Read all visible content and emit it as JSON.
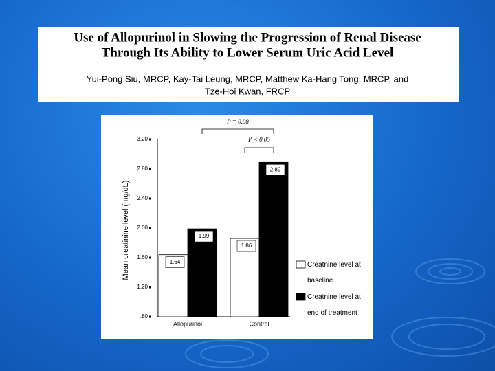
{
  "header": {
    "title": [
      "Use of Allopurinol in Slowing the Progression of Renal Disease",
      "Through Its Ability to Lower Serum Uric Acid Level"
    ],
    "authors": [
      "Yui-Pong Siu, MRCP, Kay-Tai Leung, MRCP, Matthew Ka-Hang Tong, MRCP, and",
      "Tze-Hoi Kwan, FRCP"
    ]
  },
  "chart_data": {
    "type": "bar",
    "y_label": "Mean creatinine level (mg/dL)",
    "categories": [
      "Allopurinol",
      "Control"
    ],
    "series": [
      {
        "name": "Creatnine level at baseline",
        "color": "#ffffff",
        "values": [
          1.64,
          1.86
        ]
      },
      {
        "name": "Creatnine level at end of treatment",
        "color": "#000000",
        "values": [
          1.99,
          2.89
        ]
      }
    ],
    "ylim": [
      0.8,
      3.2
    ],
    "yticks": [
      {
        "value": 0.8,
        "label": ".80"
      },
      {
        "value": 1.2,
        "label": "1.20"
      },
      {
        "value": 1.6,
        "label": "1.60"
      },
      {
        "value": 2.0,
        "label": "2.00"
      },
      {
        "value": 2.4,
        "label": "2.40"
      },
      {
        "value": 2.8,
        "label": "2.80"
      },
      {
        "value": 3.2,
        "label": "3.20"
      }
    ],
    "annotations": [
      "P = 0.08",
      "P < 0.05"
    ],
    "legend": "right"
  }
}
